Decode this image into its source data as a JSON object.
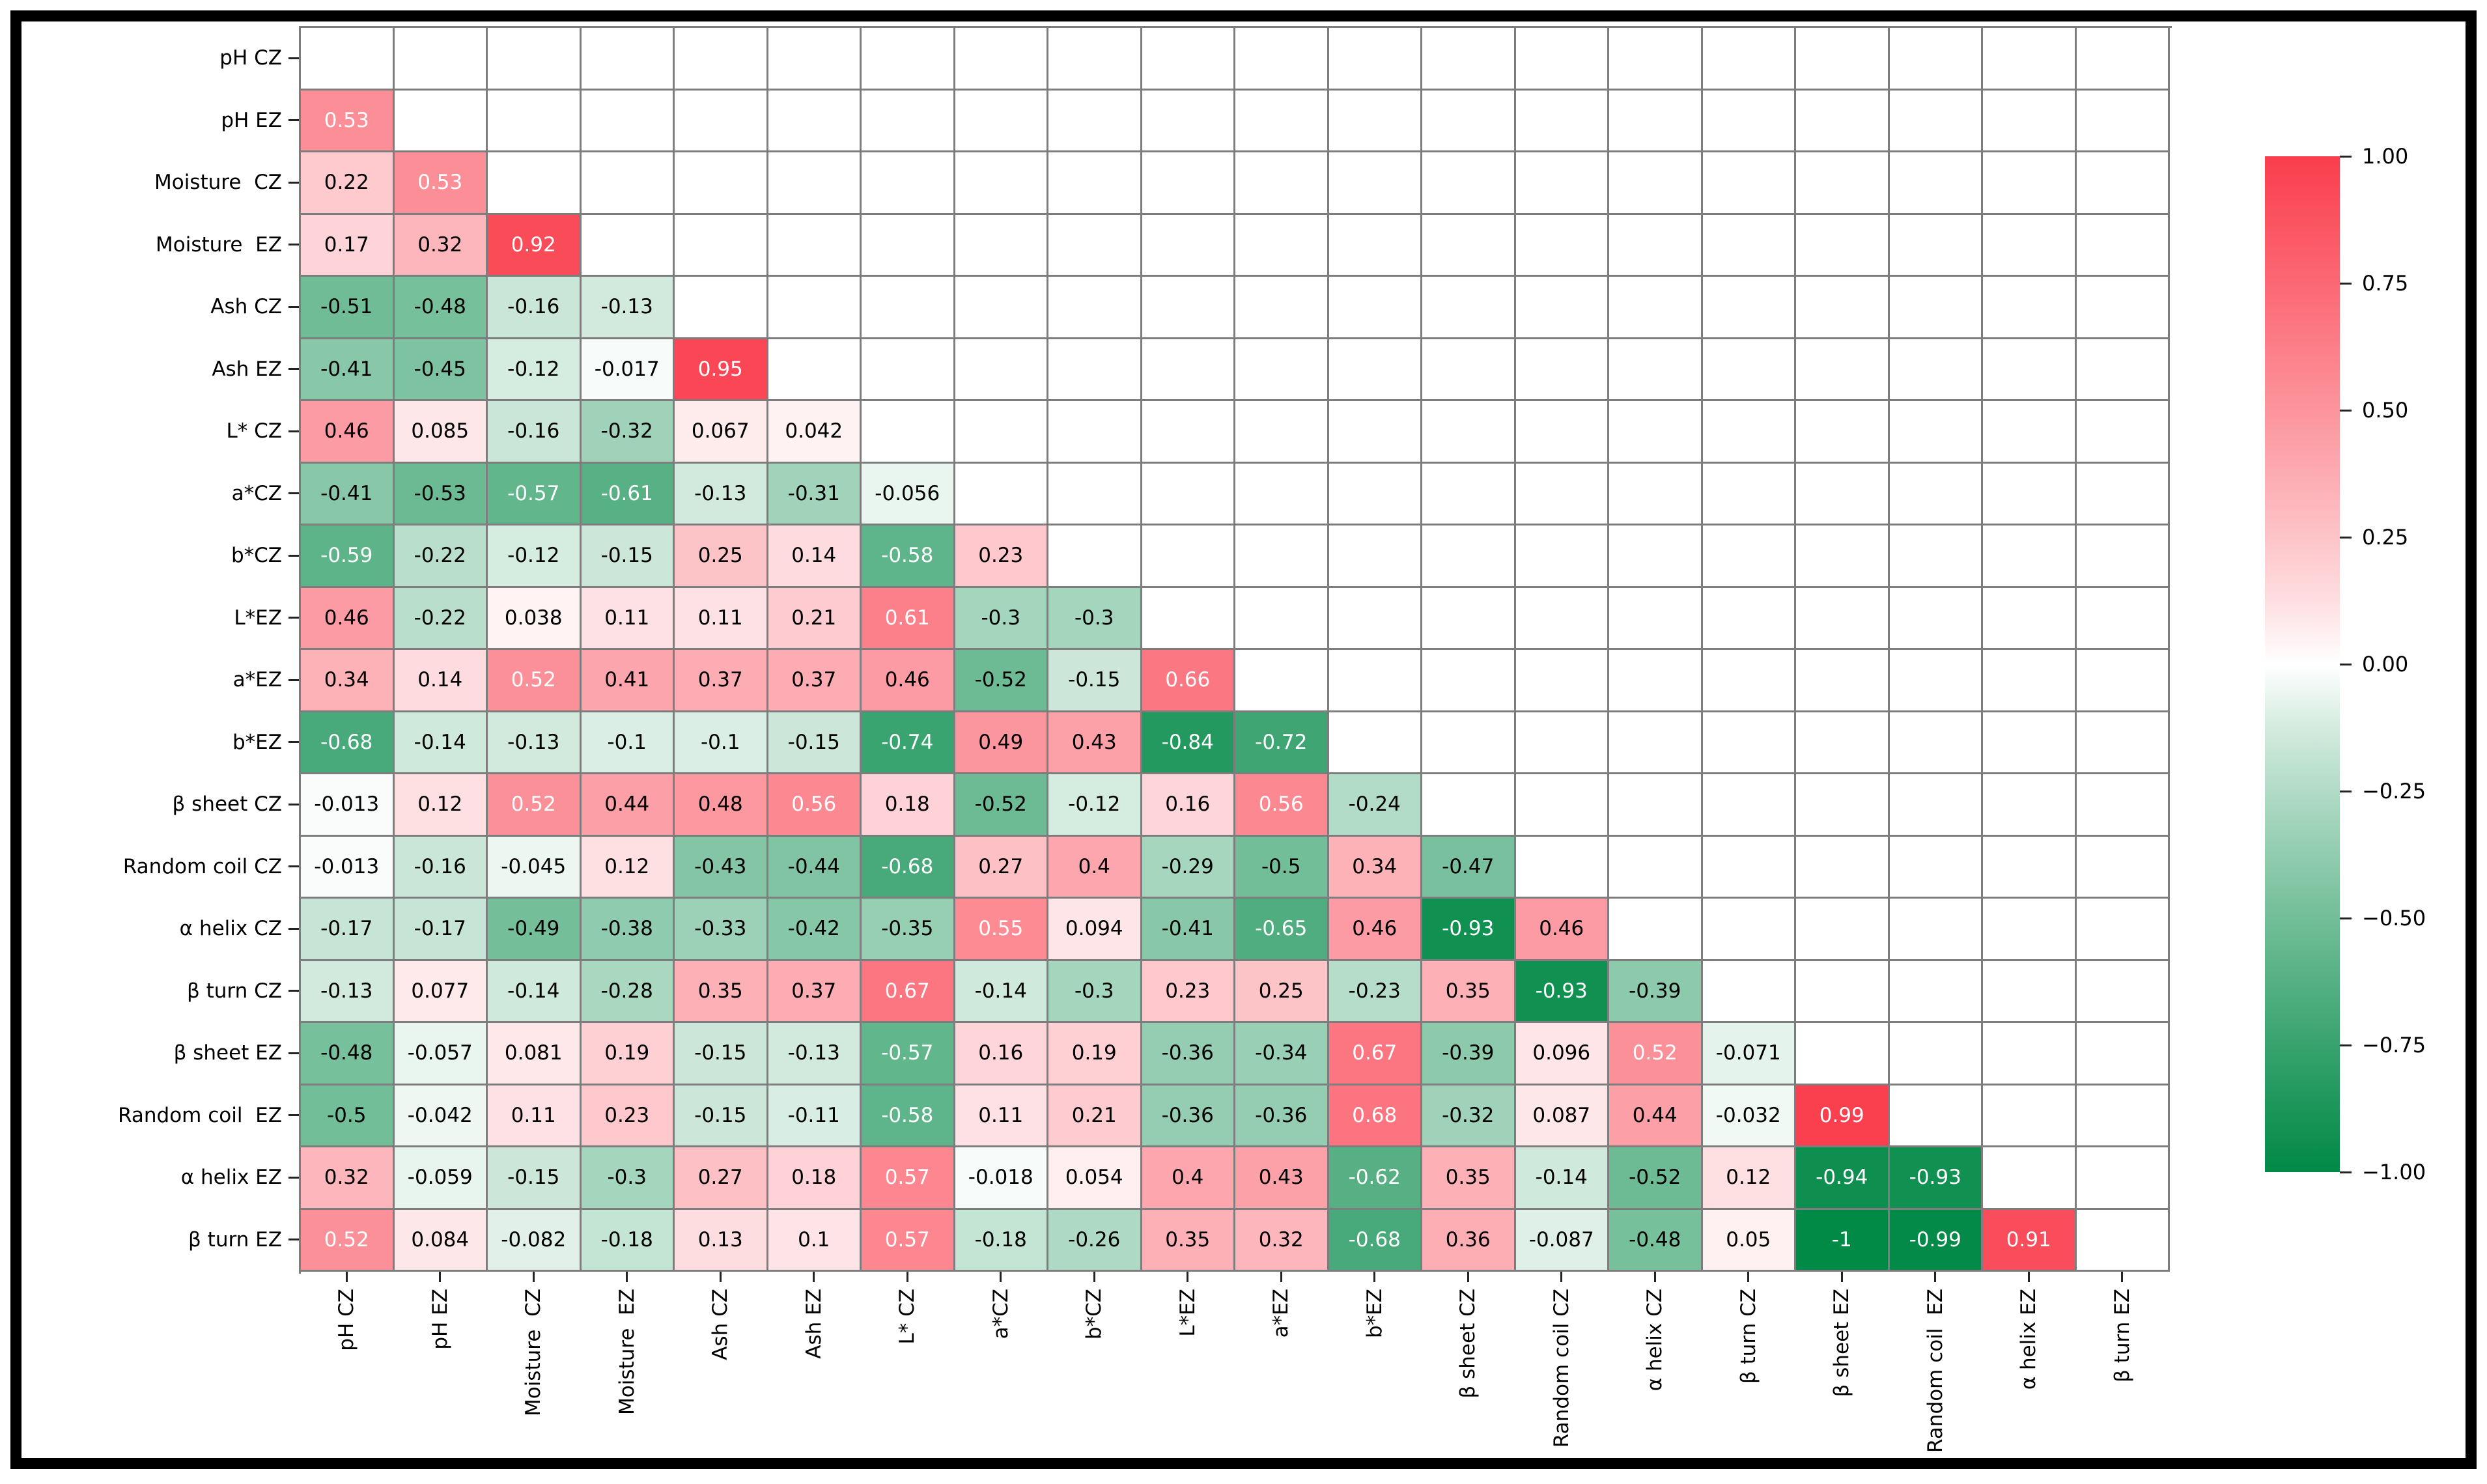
{
  "figure": {
    "background_color": "#ffffff",
    "frame_color": "#000000"
  },
  "chart_data": {
    "type": "heatmap",
    "subtype": "lower-triangle correlation matrix with annotated values",
    "categories": [
      "pH CZ",
      "pH EZ",
      "Moisture  CZ",
      "Moisture  EZ",
      "Ash CZ",
      "Ash EZ",
      "L* CZ",
      "a*CZ",
      "b*CZ",
      "L*EZ",
      "a*EZ",
      "b*EZ",
      "β sheet CZ",
      "Random coil CZ",
      "α helix CZ",
      "β turn CZ",
      "β sheet EZ",
      "Random coil  EZ",
      "α helix EZ",
      "β turn EZ"
    ],
    "rows": [
      {
        "label": "pH CZ",
        "values": []
      },
      {
        "label": "pH EZ",
        "values": [
          0.53
        ]
      },
      {
        "label": "Moisture  CZ",
        "values": [
          0.22,
          0.53
        ]
      },
      {
        "label": "Moisture  EZ",
        "values": [
          0.17,
          0.32,
          0.92
        ]
      },
      {
        "label": "Ash CZ",
        "values": [
          -0.51,
          -0.48,
          -0.16,
          -0.13
        ]
      },
      {
        "label": "Ash EZ",
        "values": [
          -0.41,
          -0.45,
          -0.12,
          -0.017,
          0.95
        ]
      },
      {
        "label": "L* CZ",
        "values": [
          0.46,
          0.085,
          -0.16,
          -0.32,
          0.067,
          0.042
        ]
      },
      {
        "label": "a*CZ",
        "values": [
          -0.41,
          -0.53,
          -0.57,
          -0.61,
          -0.13,
          -0.31,
          -0.056
        ]
      },
      {
        "label": "b*CZ",
        "values": [
          -0.59,
          -0.22,
          -0.12,
          -0.15,
          0.25,
          0.14,
          -0.58,
          0.23
        ]
      },
      {
        "label": "L*EZ",
        "values": [
          0.46,
          -0.22,
          0.038,
          0.11,
          0.11,
          0.21,
          0.61,
          -0.3,
          -0.3
        ]
      },
      {
        "label": "a*EZ",
        "values": [
          0.34,
          0.14,
          0.52,
          0.41,
          0.37,
          0.37,
          0.46,
          -0.52,
          -0.15,
          0.66
        ]
      },
      {
        "label": "b*EZ",
        "values": [
          -0.68,
          -0.14,
          -0.13,
          -0.1,
          -0.1,
          -0.15,
          -0.74,
          0.49,
          0.43,
          -0.84,
          -0.72
        ]
      },
      {
        "label": "β sheet CZ",
        "values": [
          -0.013,
          0.12,
          0.52,
          0.44,
          0.48,
          0.56,
          0.18,
          -0.52,
          -0.12,
          0.16,
          0.56,
          -0.24
        ]
      },
      {
        "label": "Random coil CZ",
        "values": [
          -0.013,
          -0.16,
          -0.045,
          0.12,
          -0.43,
          -0.44,
          -0.68,
          0.27,
          0.4,
          -0.29,
          -0.5,
          0.34,
          -0.47
        ]
      },
      {
        "label": "α helix CZ",
        "values": [
          -0.17,
          -0.17,
          -0.49,
          -0.38,
          -0.33,
          -0.42,
          -0.35,
          0.55,
          0.094,
          -0.41,
          -0.65,
          0.46,
          -0.93,
          0.46
        ]
      },
      {
        "label": "β turn CZ",
        "values": [
          -0.13,
          0.077,
          -0.14,
          -0.28,
          0.35,
          0.37,
          0.67,
          -0.14,
          -0.3,
          0.23,
          0.25,
          -0.23,
          0.35,
          -0.93,
          -0.39
        ]
      },
      {
        "label": "β sheet EZ",
        "values": [
          -0.48,
          -0.057,
          0.081,
          0.19,
          -0.15,
          -0.13,
          -0.57,
          0.16,
          0.19,
          -0.36,
          -0.34,
          0.67,
          -0.39,
          0.096,
          0.52,
          -0.071
        ]
      },
      {
        "label": "Random coil  EZ",
        "values": [
          -0.5,
          -0.042,
          0.11,
          0.23,
          -0.15,
          -0.11,
          -0.58,
          0.11,
          0.21,
          -0.36,
          -0.36,
          0.68,
          -0.32,
          0.087,
          0.44,
          -0.032,
          0.99
        ]
      },
      {
        "label": "α helix EZ",
        "values": [
          0.32,
          -0.059,
          -0.15,
          -0.3,
          0.27,
          0.18,
          0.57,
          -0.018,
          0.054,
          0.4,
          0.43,
          -0.62,
          0.35,
          -0.14,
          -0.52,
          0.12,
          -0.94,
          -0.93
        ]
      },
      {
        "label": "β turn EZ",
        "values": [
          0.52,
          0.084,
          -0.082,
          -0.18,
          0.13,
          0.1,
          0.57,
          -0.18,
          -0.26,
          0.35,
          0.32,
          -0.68,
          0.36,
          -0.087,
          -0.48,
          0.05,
          -1,
          -0.99,
          0.91
        ]
      }
    ],
    "value_range": [
      -1,
      1
    ],
    "grid": "on",
    "grid_color": "#7d7d7d",
    "empty_cell_color": "#ffffff",
    "colormap": {
      "positive_end_rgb": [
        250,
        62,
        77
      ],
      "negative_end_rgb": [
        1,
        137,
        70
      ],
      "midpoint_rgb": [
        255,
        255,
        255
      ],
      "gamma": 0.85
    },
    "annotation_white_text_rule": {
      "white_if_ge": 0.52,
      "white_if_le": -0.56
    },
    "colorbar": {
      "position": "right",
      "ticks": [
        "1.00",
        "0.75",
        "0.50",
        "0.25",
        "0.00",
        "−0.25",
        "−0.50",
        "−0.75",
        "−1.00"
      ],
      "tick_values": [
        1.0,
        0.75,
        0.5,
        0.25,
        0.0,
        -0.25,
        -0.5,
        -0.75,
        -1.0
      ]
    }
  }
}
